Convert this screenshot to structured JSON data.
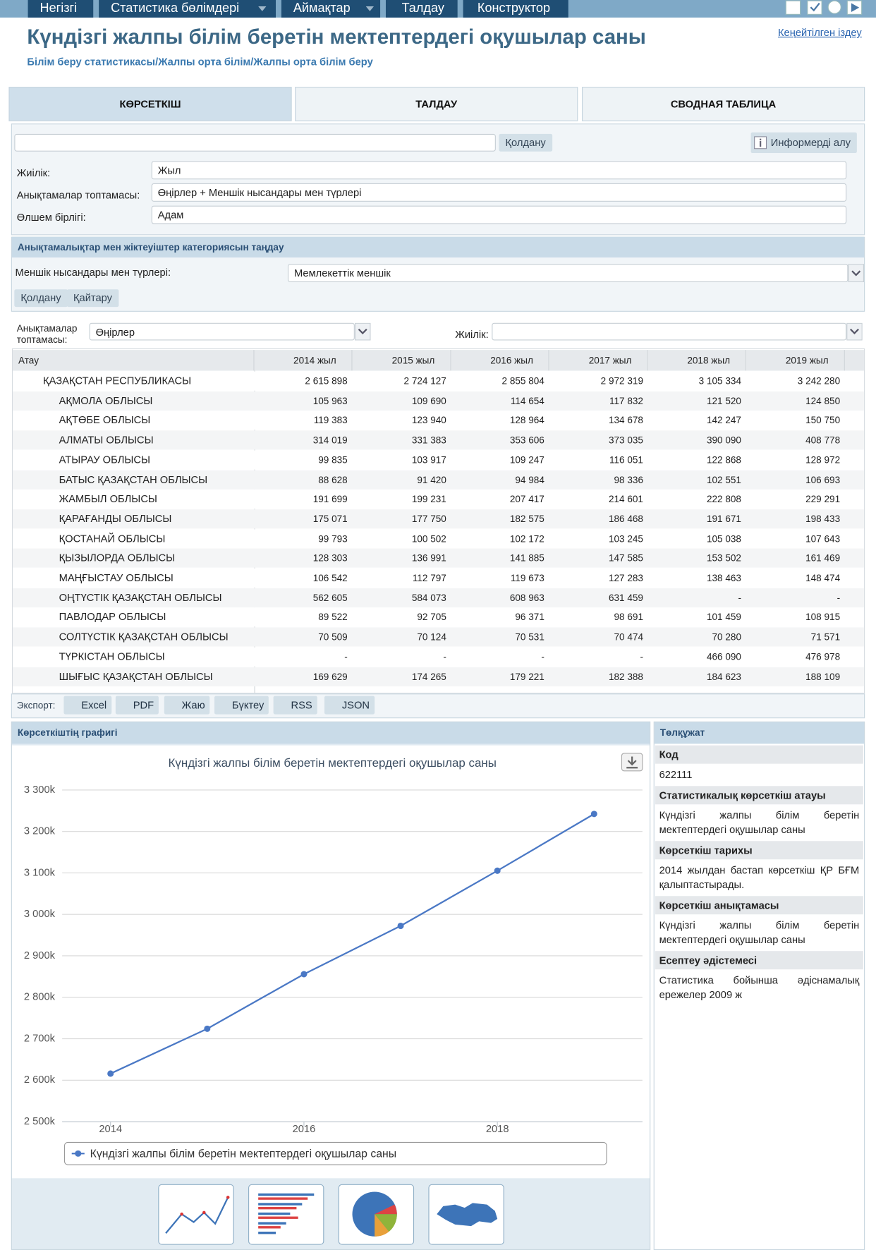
{
  "nav": {
    "items": [
      "Негізгі",
      "Статистика бөлімдері",
      "Аймақтар",
      "Талдау",
      "Конструктор"
    ]
  },
  "header": {
    "title": "Күндізгі жалпы білім беретін мектептердегі оқушылар саны",
    "breadcrumb": "Білім беру статистикасы/Жалпы орта білім/Жалпы орта білім беру",
    "search_link": "Кеңейтілген іздеу"
  },
  "tabs": [
    "КӨРСЕТКІШ",
    "ТАЛДАУ",
    "СВОДНАЯ ТАБЛИЦА"
  ],
  "filter": {
    "apply": "Қолдану",
    "informer": "Информерді алу",
    "fields": [
      {
        "label": "Жиілік:",
        "value": "Жыл"
      },
      {
        "label": "Анықтамалар топтамасы:",
        "value": "Өңірлер + Меншік нысандары мен түрлері"
      },
      {
        "label": "Өлшем бірлігі:",
        "value": "Адам"
      }
    ]
  },
  "category": {
    "title": "Анықтамалықтар мен жіктеуіштер категориясын таңдау",
    "label": "Меншік нысандары мен түрлері:",
    "value": "Мемлекеттік меншік",
    "apply": "Қолдану",
    "reset": "Қайтару"
  },
  "table_controls": {
    "group_label": "Анықтамалар топтамасы:",
    "group_value": "Өңірлер",
    "freq_label": "Жиілік:"
  },
  "table": {
    "header": [
      "Атау",
      "2014 жыл",
      "2015 жыл",
      "2016 жыл",
      "2017 жыл",
      "2018 жыл",
      "2019 жыл"
    ],
    "rows": [
      [
        "ҚАЗАҚСТАН РЕСПУБЛИКАСЫ",
        "2 615 898",
        "2 724 127",
        "2 855 804",
        "2 972 319",
        "3 105 334",
        "3 242 280"
      ],
      [
        "АҚМОЛА ОБЛЫСЫ",
        "105 963",
        "109 690",
        "114 654",
        "117 832",
        "121 520",
        "124 850"
      ],
      [
        "АҚТӨБЕ ОБЛЫСЫ",
        "119 383",
        "123 940",
        "128 964",
        "134 678",
        "142 247",
        "150 750"
      ],
      [
        "АЛМАТЫ ОБЛЫСЫ",
        "314 019",
        "331 383",
        "353 606",
        "373 035",
        "390 090",
        "408 778"
      ],
      [
        "АТЫРАУ ОБЛЫСЫ",
        "99 835",
        "103 917",
        "109 247",
        "116 051",
        "122 868",
        "128 972"
      ],
      [
        "БАТЫС ҚАЗАҚСТАН ОБЛЫСЫ",
        "88 628",
        "91 420",
        "94 984",
        "98 336",
        "102 551",
        "106 693"
      ],
      [
        "ЖАМБЫЛ ОБЛЫСЫ",
        "191 699",
        "199 231",
        "207 417",
        "214 601",
        "222 808",
        "229 291"
      ],
      [
        "ҚАРАҒАНДЫ ОБЛЫСЫ",
        "175 071",
        "177 750",
        "182 575",
        "186 468",
        "191 671",
        "198 433"
      ],
      [
        "ҚОСТАНАЙ ОБЛЫСЫ",
        "99 793",
        "100 502",
        "102 172",
        "103 245",
        "105 038",
        "107 643"
      ],
      [
        "ҚЫЗЫЛОРДА ОБЛЫСЫ",
        "128 303",
        "136 991",
        "141 885",
        "147 585",
        "153 502",
        "161 469"
      ],
      [
        "МАҢҒЫСТАУ ОБЛЫСЫ",
        "106 542",
        "112 797",
        "119 673",
        "127 283",
        "138 463",
        "148 474"
      ],
      [
        "ОҢТҮСТІК ҚАЗАҚСТАН ОБЛЫСЫ",
        "562 605",
        "584 073",
        "608 963",
        "631 459",
        "-",
        "-"
      ],
      [
        "ПАВЛОДАР ОБЛЫСЫ",
        "89 522",
        "92 705",
        "96 371",
        "98 691",
        "101 459",
        "108 915"
      ],
      [
        "СОЛТҮСТІК ҚАЗАҚСТАН ОБЛЫСЫ",
        "70 509",
        "70 124",
        "70 531",
        "70 474",
        "70 280",
        "71 571"
      ],
      [
        "ТҮРКІСТАН ОБЛЫСЫ",
        "-",
        "-",
        "-",
        "-",
        "466 090",
        "476 978"
      ],
      [
        "ШЫҒЫС ҚАЗАҚСТАН ОБЛЫСЫ",
        "169 629",
        "174 265",
        "179 221",
        "182 388",
        "184 623",
        "188 109"
      ]
    ]
  },
  "export": {
    "label": "Экспорт:",
    "buttons": [
      "Excel",
      "PDF",
      "Жаю",
      "Бүктеу",
      "RSS",
      "JSON"
    ]
  },
  "chart_panel": {
    "title": "Көрсеткіштің графигі"
  },
  "chart_data": {
    "type": "line",
    "title": "Күндізгі жалпы білім беретін мектептердегі оқушылар саны",
    "x": [
      2014,
      2015,
      2016,
      2017,
      2018,
      2019
    ],
    "series": [
      {
        "name": "Күндізгі жалпы білім беретін мектептердегі оқушылар саны",
        "color": "#4a78c5",
        "values": [
          2615898,
          2724127,
          2855804,
          2972319,
          3105334,
          3242280
        ]
      }
    ],
    "xlim": [
      2013.5,
      2019.5
    ],
    "xticks": [
      2014,
      2016,
      2018
    ],
    "ylim": [
      2500000,
      3300000
    ],
    "yticks": [
      {
        "value": 2500000,
        "label": "2 500k"
      },
      {
        "value": 2600000,
        "label": "2 600k"
      },
      {
        "value": 2700000,
        "label": "2 700k"
      },
      {
        "value": 2800000,
        "label": "2 800k"
      },
      {
        "value": 2900000,
        "label": "2 900k"
      },
      {
        "value": 3000000,
        "label": "3 000k"
      },
      {
        "value": 3100000,
        "label": "3 100k"
      },
      {
        "value": 3200000,
        "label": "3 200k"
      },
      {
        "value": 3300000,
        "label": "3 300k"
      }
    ],
    "grid": true,
    "legend": "bottom"
  },
  "doc": {
    "title": "Төлқұжат",
    "items": [
      {
        "heading": "Код",
        "text": "622111"
      },
      {
        "heading": "Статистикалық көрсеткіш атауы",
        "text": "Күндізгі жалпы білім беретін мектептердегі оқушылар саны"
      },
      {
        "heading": "Көрсеткіш тарихы",
        "text": "2014 жылдан бастап көрсеткіш ҚР БҒМ қалыптастырады."
      },
      {
        "heading": "Көрсеткіш анықтамасы",
        "text": "Күндізгі жалпы білім беретін мектептердегі оқушылар саны"
      },
      {
        "heading": "Есептеу әдістемесі",
        "text": "Статистика бойынша әдіснамалық ережелер 2009 ж"
      }
    ]
  }
}
